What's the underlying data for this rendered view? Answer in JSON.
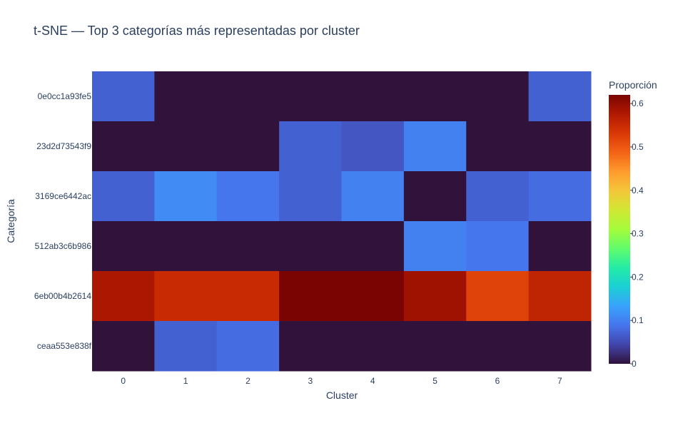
{
  "chart_data": {
    "type": "heatmap",
    "title": "t-SNE — Top 3 categorías más representadas por cluster",
    "xlabel": "Cluster",
    "ylabel": "Categoría",
    "x": [
      "0",
      "1",
      "2",
      "3",
      "4",
      "5",
      "6",
      "7"
    ],
    "y": [
      "0e0cc1a93fe5",
      "23d2d73543f9",
      "3169ce6442ac",
      "512ab3c6b986",
      "6eb00b4b2614",
      "ceaa553e838f"
    ],
    "z": [
      [
        0.07,
        0.0,
        0.0,
        0.0,
        0.0,
        0.0,
        0.0,
        0.07
      ],
      [
        0.0,
        0.0,
        0.0,
        0.07,
        0.06,
        0.1,
        0.0,
        0.0
      ],
      [
        0.07,
        0.11,
        0.09,
        0.07,
        0.1,
        0.0,
        0.07,
        0.08
      ],
      [
        0.0,
        0.0,
        0.0,
        0.0,
        0.0,
        0.1,
        0.09,
        0.0
      ],
      [
        0.58,
        0.55,
        0.55,
        0.62,
        0.62,
        0.59,
        0.52,
        0.56
      ],
      [
        0.0,
        0.07,
        0.08,
        0.0,
        0.0,
        0.0,
        0.0,
        0.0
      ]
    ],
    "colorbar": {
      "title": "Proporción",
      "range": [
        0,
        0.62
      ],
      "ticks": [
        "0",
        "0.1",
        "0.2",
        "0.3",
        "0.4",
        "0.5",
        "0.6"
      ]
    },
    "colorscale": [
      "#30123b",
      "#4145ab",
      "#4675ed",
      "#39a2fc",
      "#1bcfd4",
      "#24eca6",
      "#61fc6c",
      "#a4fc3b",
      "#d1e834",
      "#f3c63a",
      "#fe9b2d",
      "#f36315",
      "#d93806",
      "#b11901",
      "#7a0402"
    ],
    "grid": false
  }
}
